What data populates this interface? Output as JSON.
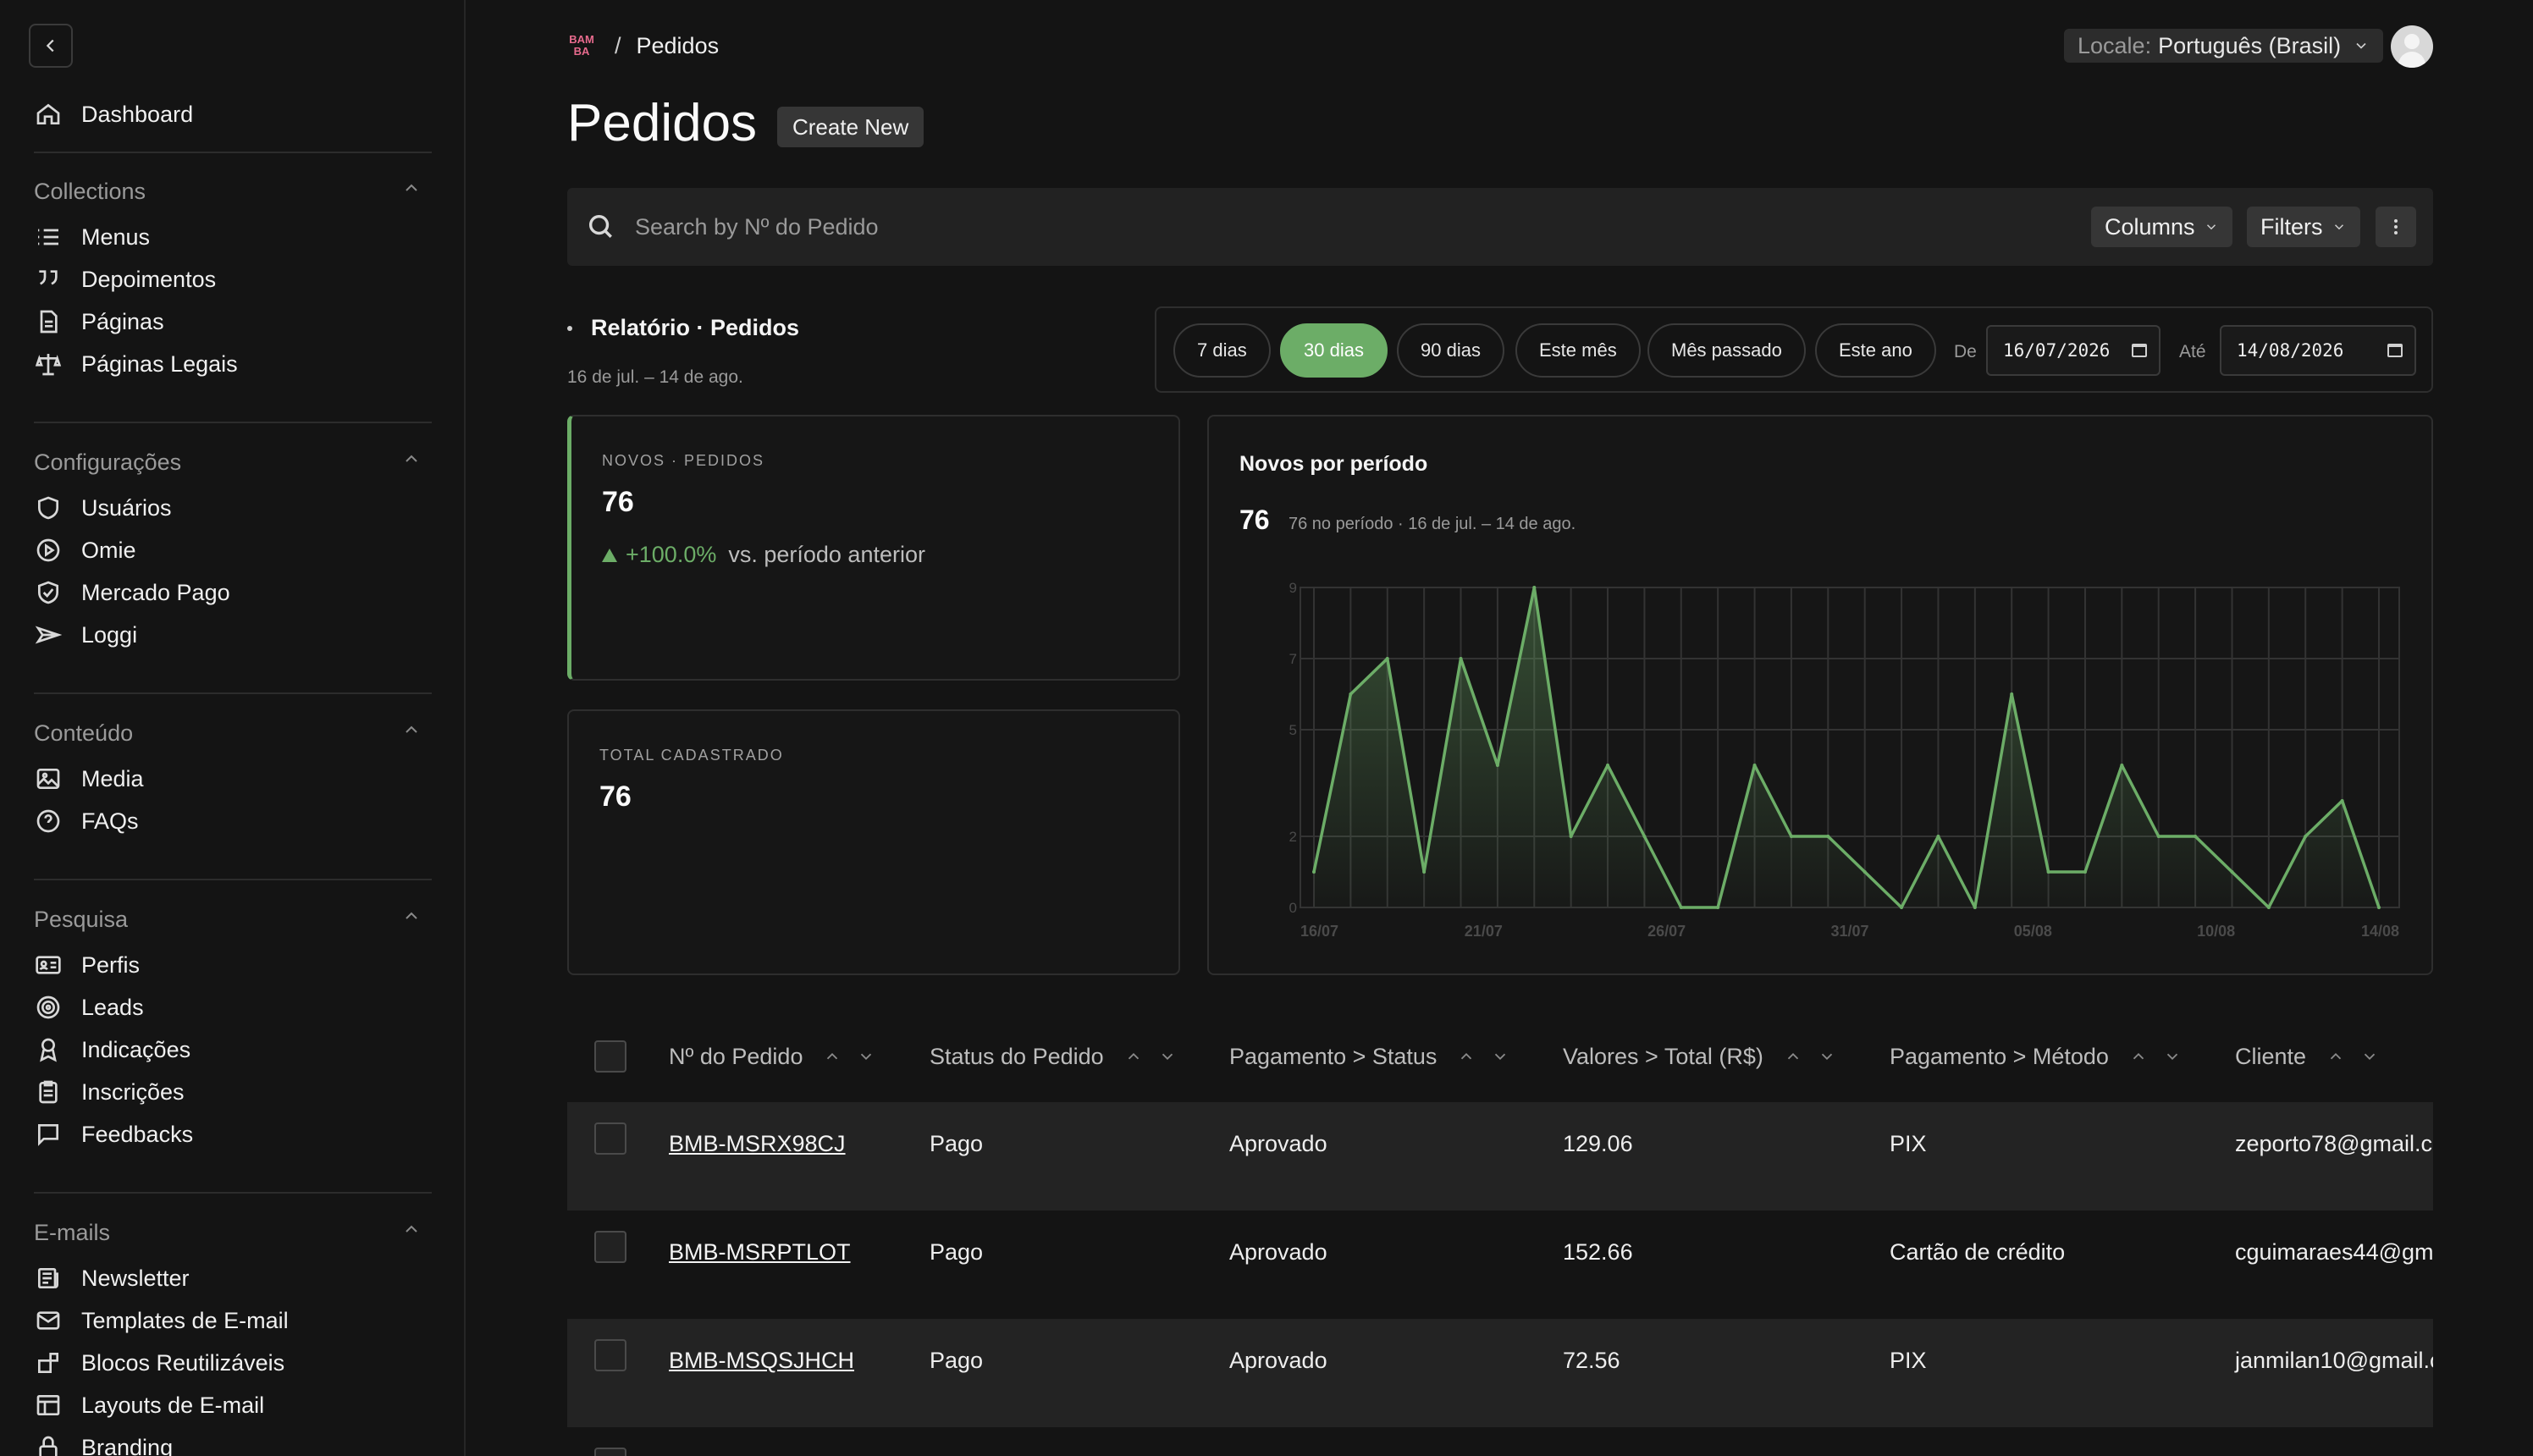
{
  "sidebar": {
    "dashboard": "Dashboard",
    "groups": [
      {
        "title": "Collections",
        "items": [
          "Menus",
          "Depoimentos",
          "Páginas",
          "Páginas Legais"
        ]
      },
      {
        "title": "Configurações",
        "items": [
          "Usuários",
          "Omie",
          "Mercado Pago",
          "Loggi"
        ]
      },
      {
        "title": "Conteúdo",
        "items": [
          "Media",
          "FAQs"
        ]
      },
      {
        "title": "Pesquisa",
        "items": [
          "Perfis",
          "Leads",
          "Indicações",
          "Inscrições",
          "Feedbacks"
        ]
      },
      {
        "title": "E-mails",
        "items": [
          "Newsletter",
          "Templates de E-mail",
          "Blocos Reutilizáveis",
          "Layouts de E-mail",
          "Branding"
        ]
      }
    ]
  },
  "header": {
    "logo_text": [
      "BAM",
      "BA"
    ],
    "separator": "/",
    "breadcrumb": "Pedidos",
    "locale_label": "Locale:",
    "locale_value": "Português (Brasil)"
  },
  "page": {
    "title": "Pedidos",
    "create_label": "Create New"
  },
  "search": {
    "placeholder": "Search by Nº do Pedido",
    "columns_label": "Columns",
    "filters_label": "Filters"
  },
  "report": {
    "title": "Relatório · Pedidos",
    "subtitle": "16 de jul. – 14 de ago.",
    "ranges": [
      "7 dias",
      "30 dias",
      "90 dias",
      "Este mês",
      "Mês passado",
      "Este ano"
    ],
    "active_range": "30 dias",
    "from_label": "De",
    "from_value": "16/07/2026",
    "to_label": "Até",
    "to_value": "14/08/2026"
  },
  "kpis": {
    "new_label": "NOVOS · PEDIDOS",
    "new_value": "76",
    "delta": "+100.0%",
    "delta_compare": "vs. período anterior",
    "total_label": "TOTAL CADASTRADO",
    "total_value": "76"
  },
  "chart": {
    "title": "Novos por período",
    "total": "76",
    "note": "76 no período · 16 de jul. – 14 de ago."
  },
  "chart_data": {
    "type": "area",
    "title": "Novos por período",
    "x_ticks": [
      "16/07",
      "21/07",
      "26/07",
      "31/07",
      "05/08",
      "10/08",
      "14/08"
    ],
    "y_ticks": [
      0,
      2,
      5,
      7,
      9
    ],
    "ylim": [
      0,
      9
    ],
    "grid": true,
    "color": "#6cad67",
    "values": [
      1,
      6,
      7,
      1,
      7,
      4,
      9,
      2,
      4,
      2,
      0,
      0,
      4,
      2,
      2,
      1,
      0,
      2,
      0,
      6,
      1,
      1,
      4,
      2,
      2,
      1,
      0,
      2,
      3,
      0
    ]
  },
  "table": {
    "headers": [
      "Nº do Pedido",
      "Status do Pedido",
      "Pagamento > Status",
      "Valores > Total (R$)",
      "Pagamento > Método",
      "Cliente"
    ],
    "rows": [
      [
        "BMB-MSRX98CJ",
        "Pago",
        "Aprovado",
        "129.06",
        "PIX",
        "zeporto78@gmail.c"
      ],
      [
        "BMB-MSRPTLOT",
        "Pago",
        "Aprovado",
        "152.66",
        "Cartão de crédito",
        "cguimaraes44@gm"
      ],
      [
        "BMB-MSQSJHCH",
        "Pago",
        "Aprovado",
        "72.56",
        "PIX",
        "janmilan10@gmail.c"
      ]
    ]
  },
  "colors": {
    "accent": "#6cad67",
    "background": "#141414",
    "panel": "#222222"
  }
}
